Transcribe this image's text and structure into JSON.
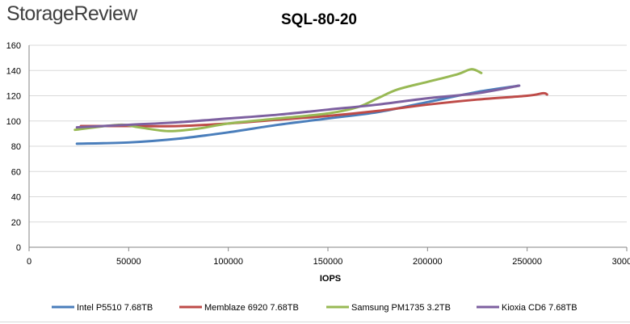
{
  "header": {
    "logo_text": "StorageReview"
  },
  "chart_data": {
    "type": "line",
    "title": "SQL-80-20",
    "xlabel": "IOPS",
    "ylabel": "",
    "xlim": [
      0,
      300000
    ],
    "ylim": [
      0,
      160
    ],
    "x_ticks": [
      0,
      50000,
      100000,
      150000,
      200000,
      250000,
      300000
    ],
    "x_tick_labels": [
      "0",
      "50000",
      "100000",
      "150000",
      "200000",
      "250000",
      "300000"
    ],
    "y_ticks": [
      0,
      20,
      40,
      60,
      80,
      100,
      120,
      140,
      160
    ],
    "y_tick_labels": [
      "0",
      "20",
      "40",
      "60",
      "80",
      "100",
      "120",
      "140",
      "160"
    ],
    "grid": "horizontal",
    "legend_position": "bottom",
    "series": [
      {
        "name": "Intel P5510 7.68TB",
        "color": "#4a7ebb",
        "x": [
          24000,
          50000,
          75000,
          100000,
          125000,
          150000,
          175000,
          200000,
          225000,
          246000
        ],
        "y": [
          82,
          83,
          86,
          91,
          97,
          102,
          107,
          115,
          123,
          128
        ]
      },
      {
        "name": "Memblaze 6920 7.68TB",
        "color": "#be4b48",
        "x": [
          26000,
          50000,
          75000,
          100000,
          125000,
          150000,
          175000,
          200000,
          225000,
          250000,
          258000,
          260000
        ],
        "y": [
          96,
          96,
          96,
          98,
          101,
          104,
          108,
          113,
          117,
          120,
          122,
          121
        ]
      },
      {
        "name": "Samsung PM1735 3.2TB",
        "color": "#98b954",
        "x": [
          23000,
          45000,
          55000,
          70000,
          85000,
          100000,
          125000,
          150000,
          165000,
          175000,
          185000,
          200000,
          215000,
          222000,
          227000
        ],
        "y": [
          93,
          97,
          95,
          92,
          94,
          98,
          102,
          106,
          111,
          118,
          125,
          131,
          137,
          141,
          138
        ]
      },
      {
        "name": "Kioxia CD6 7.68TB",
        "color": "#7d60a0",
        "x": [
          24000,
          50000,
          75000,
          100000,
          125000,
          150000,
          175000,
          200000,
          225000,
          246000
        ],
        "y": [
          95,
          97,
          99,
          102,
          105,
          109,
          113,
          118,
          122,
          128
        ]
      }
    ]
  }
}
